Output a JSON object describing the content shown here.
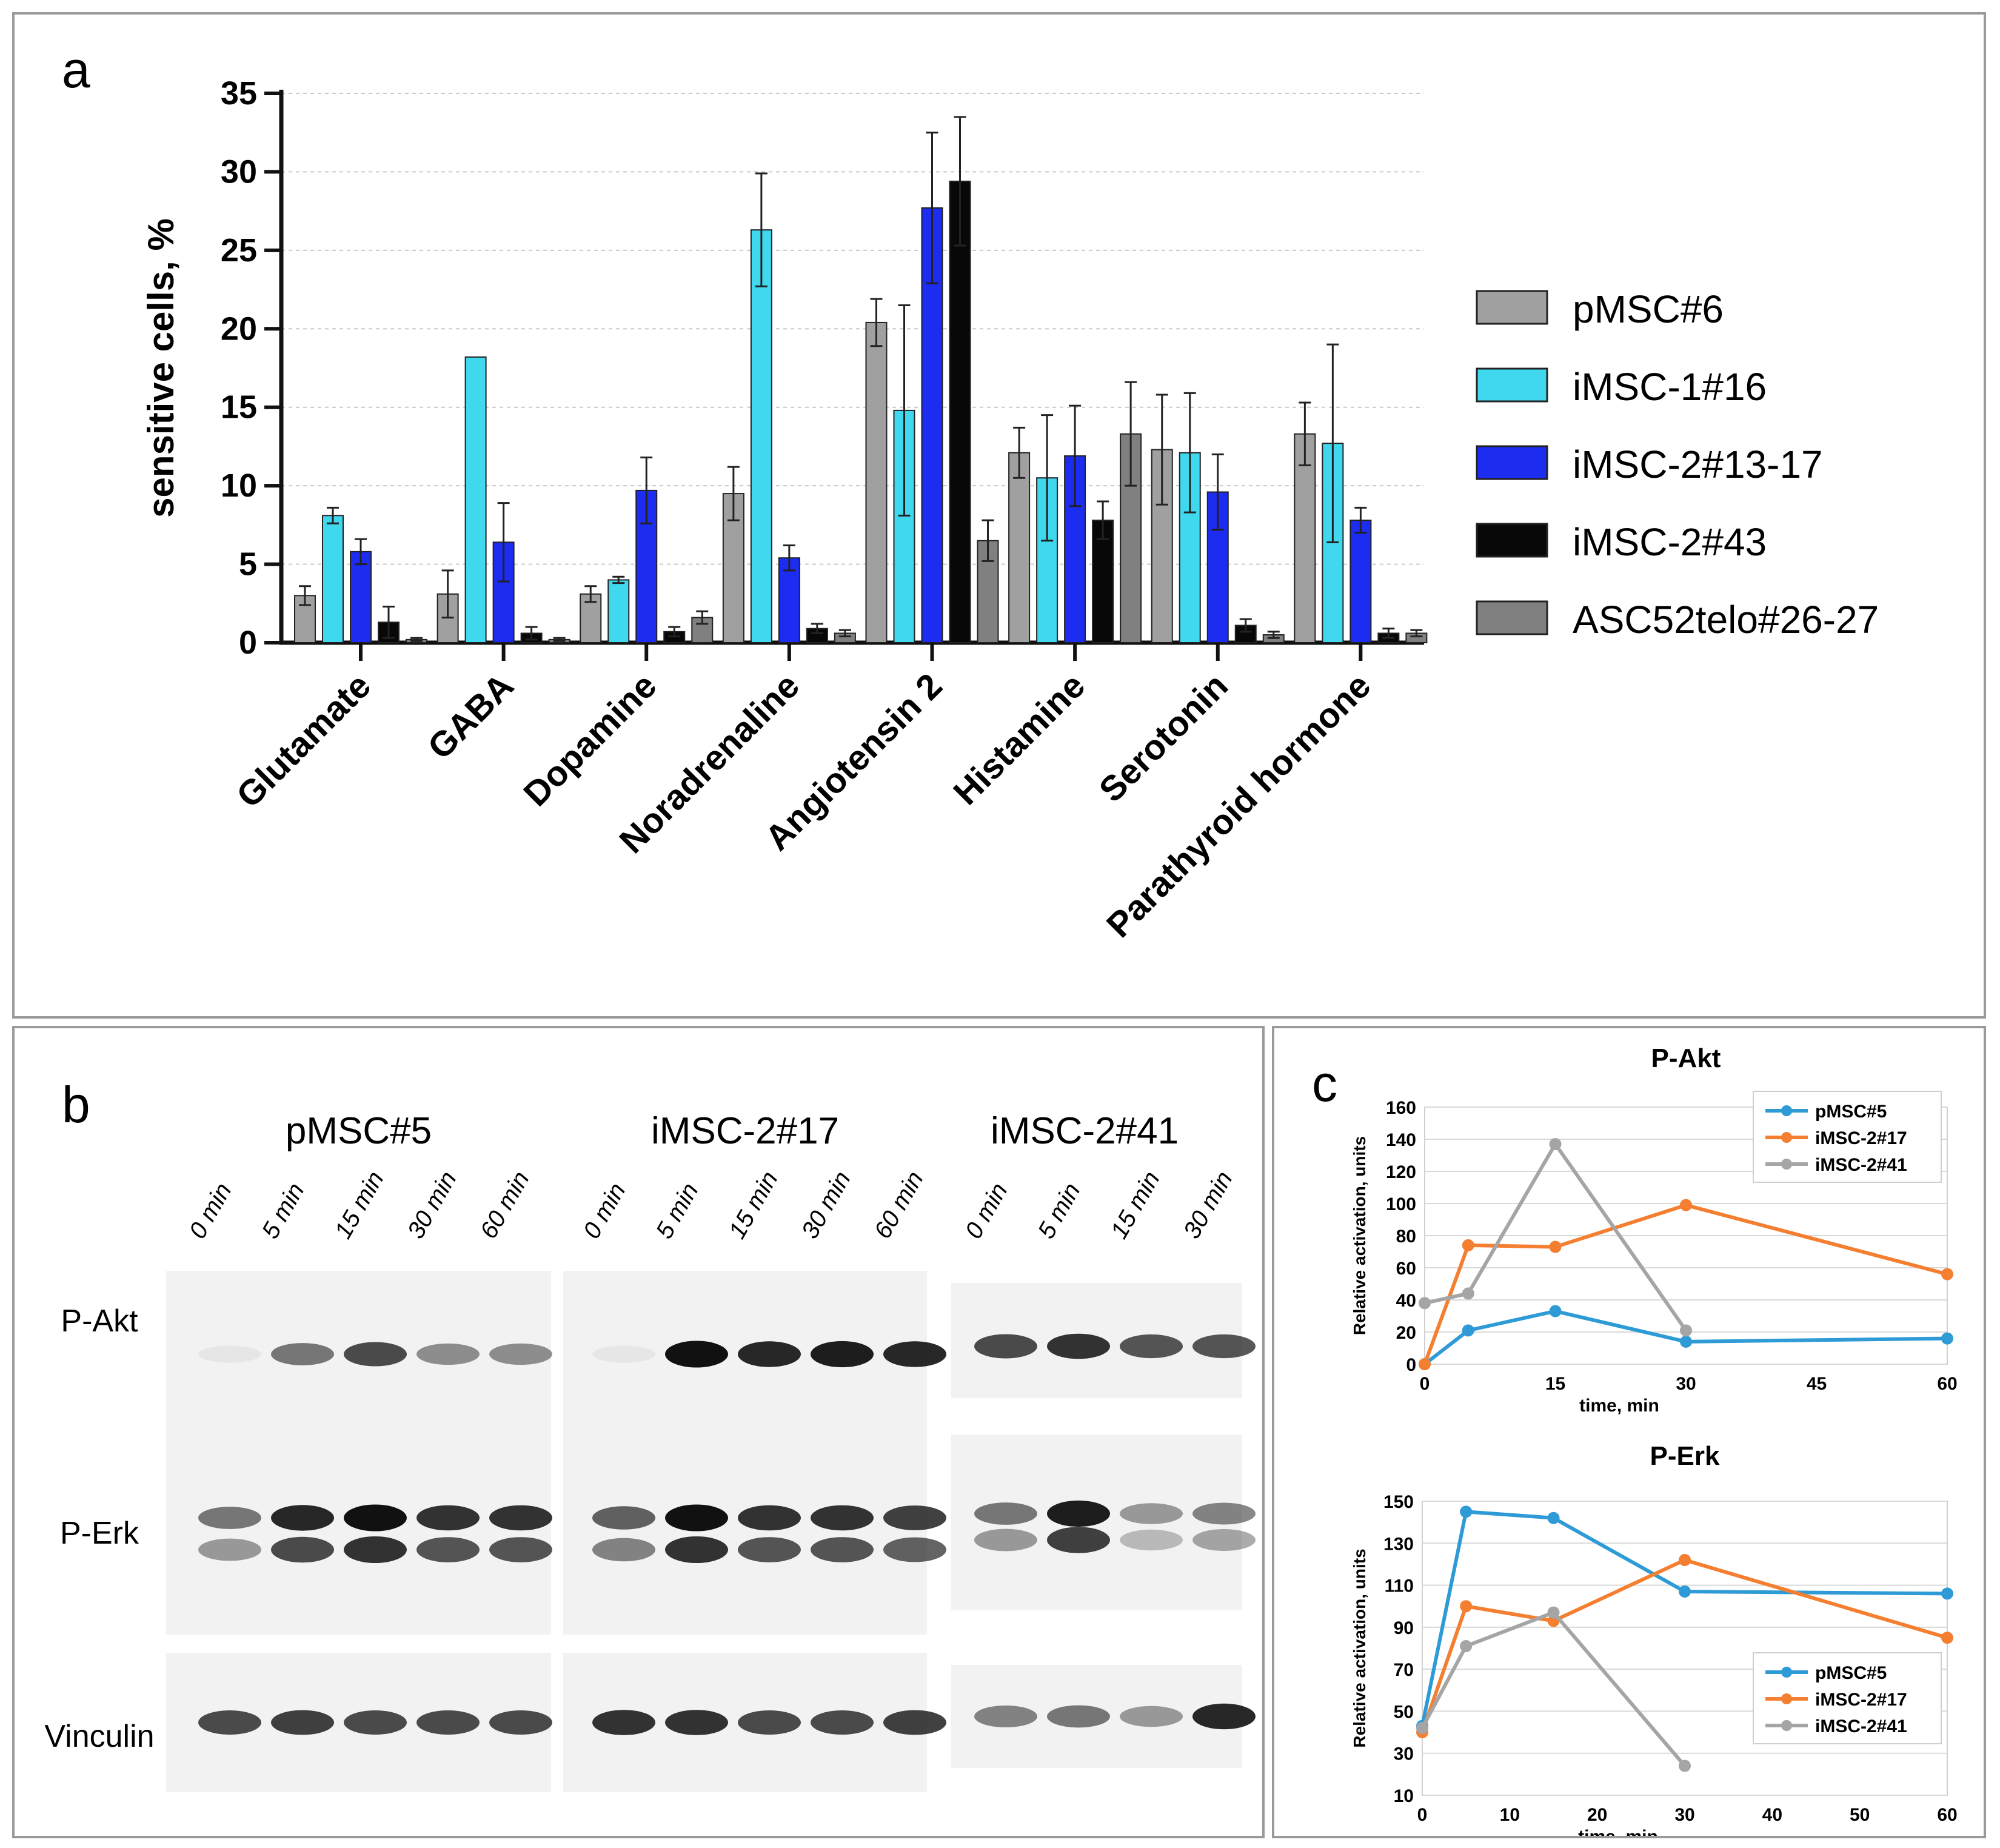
{
  "panel_labels": {
    "a": "a",
    "b": "b",
    "c": "c"
  },
  "chart_data": [
    {
      "type": "bar",
      "panel": "a",
      "title": "",
      "xlabel": "",
      "ylabel": "sensitive cells, %",
      "ylim": [
        0,
        35
      ],
      "yticks": [
        0,
        5,
        10,
        15,
        20,
        25,
        30,
        35
      ],
      "grid": true,
      "legend_position": "right",
      "categories": [
        "Glutamate",
        "GABA",
        "Dopamine",
        "Noradrenaline",
        "Angiotensin 2",
        "Histamine",
        "Serotonin",
        "Parathyroid hormone"
      ],
      "series": [
        {
          "name": "pMSC#6",
          "color": "#a0a0a0",
          "values": [
            3.0,
            3.1,
            3.1,
            9.5,
            20.4,
            12.1,
            12.3,
            13.3
          ],
          "errors": [
            0.6,
            1.5,
            0.5,
            1.7,
            1.5,
            1.6,
            3.5,
            2.0
          ]
        },
        {
          "name": "iMSC-1#16",
          "color": "#40d8ee",
          "values": [
            8.1,
            18.2,
            4.0,
            26.3,
            14.8,
            10.5,
            12.1,
            12.7
          ],
          "errors": [
            0.5,
            0.0,
            0.2,
            3.6,
            6.7,
            4.0,
            3.8,
            6.3
          ]
        },
        {
          "name": "iMSC-2#13-17",
          "color": "#1c2cf0",
          "values": [
            5.8,
            6.4,
            9.7,
            5.4,
            27.7,
            11.9,
            9.6,
            7.8
          ],
          "errors": [
            0.8,
            2.5,
            2.1,
            0.8,
            4.8,
            3.2,
            2.4,
            0.8
          ]
        },
        {
          "name": "iMSC-2#43",
          "color": "#080808",
          "values": [
            1.3,
            0.6,
            0.7,
            0.9,
            29.4,
            7.8,
            1.1,
            0.6
          ],
          "errors": [
            1.0,
            0.4,
            0.3,
            0.3,
            4.1,
            1.2,
            0.4,
            0.3
          ]
        },
        {
          "name": "ASC52telo#26-27",
          "color": "#808080",
          "values": [
            0.2,
            0.2,
            1.6,
            0.6,
            6.5,
            13.3,
            0.5,
            0.6
          ],
          "errors": [
            0.1,
            0.1,
            0.4,
            0.2,
            1.3,
            3.3,
            0.2,
            0.2
          ]
        }
      ]
    },
    {
      "type": "line",
      "panel": "c",
      "title": "P-Akt",
      "xlabel": "time, min",
      "ylabel": "Relative activation, units",
      "xlim": [
        0,
        60
      ],
      "ylim": [
        0,
        160
      ],
      "xticks": [
        0,
        15,
        30,
        45,
        60
      ],
      "yticks": [
        0,
        20,
        40,
        60,
        80,
        100,
        120,
        140,
        160
      ],
      "grid": true,
      "legend_position": "top-right",
      "series": [
        {
          "name": "pMSC#5",
          "color": "#2e9bd6",
          "x": [
            0,
            5,
            15,
            30,
            60
          ],
          "y": [
            0,
            21,
            33,
            14,
            16
          ]
        },
        {
          "name": "iMSC-2#17",
          "color": "#f47f30",
          "x": [
            0,
            5,
            15,
            30,
            60
          ],
          "y": [
            0,
            74,
            73,
            99,
            56
          ]
        },
        {
          "name": "iMSC-2#41",
          "color": "#a5a5a5",
          "x": [
            0,
            5,
            15,
            30
          ],
          "y": [
            38,
            44,
            137,
            21
          ]
        }
      ]
    },
    {
      "type": "line",
      "panel": "c",
      "title": "P-Erk",
      "xlabel": "time, min",
      "ylabel": "Relative activation, units",
      "xlim": [
        0,
        60
      ],
      "ylim": [
        10,
        150
      ],
      "xticks": [
        0,
        10,
        20,
        30,
        40,
        50,
        60
      ],
      "yticks": [
        10,
        30,
        50,
        70,
        90,
        110,
        130,
        150
      ],
      "grid": true,
      "legend_position": "bottom-right",
      "series": [
        {
          "name": "pMSC#5",
          "color": "#2e9bd6",
          "x": [
            0,
            5,
            15,
            30,
            60
          ],
          "y": [
            43,
            145,
            142,
            107,
            106
          ]
        },
        {
          "name": "iMSC-2#17",
          "color": "#f47f30",
          "x": [
            0,
            5,
            15,
            30,
            60
          ],
          "y": [
            40,
            100,
            93,
            122,
            85
          ]
        },
        {
          "name": "iMSC-2#41",
          "color": "#a5a5a5",
          "x": [
            0,
            5,
            15,
            30
          ],
          "y": [
            42,
            81,
            97,
            24
          ]
        }
      ]
    }
  ],
  "blot": {
    "groups": [
      {
        "name": "pMSC#5",
        "lanes": [
          "0 min",
          "5 min",
          "15 min",
          "30 min",
          "60 min"
        ]
      },
      {
        "name": "iMSC-2#17",
        "lanes": [
          "0 min",
          "5 min",
          "15 min",
          "30 min",
          "60 min"
        ]
      },
      {
        "name": "iMSC-2#41",
        "lanes": [
          "0 min",
          "5 min",
          "15 min",
          "30 min"
        ]
      }
    ],
    "rows": [
      "P-Akt",
      "P-Erk",
      "Vinculin"
    ]
  },
  "colors": {
    "frame": "#9a9a9a",
    "grid": "#c8c8c8"
  }
}
